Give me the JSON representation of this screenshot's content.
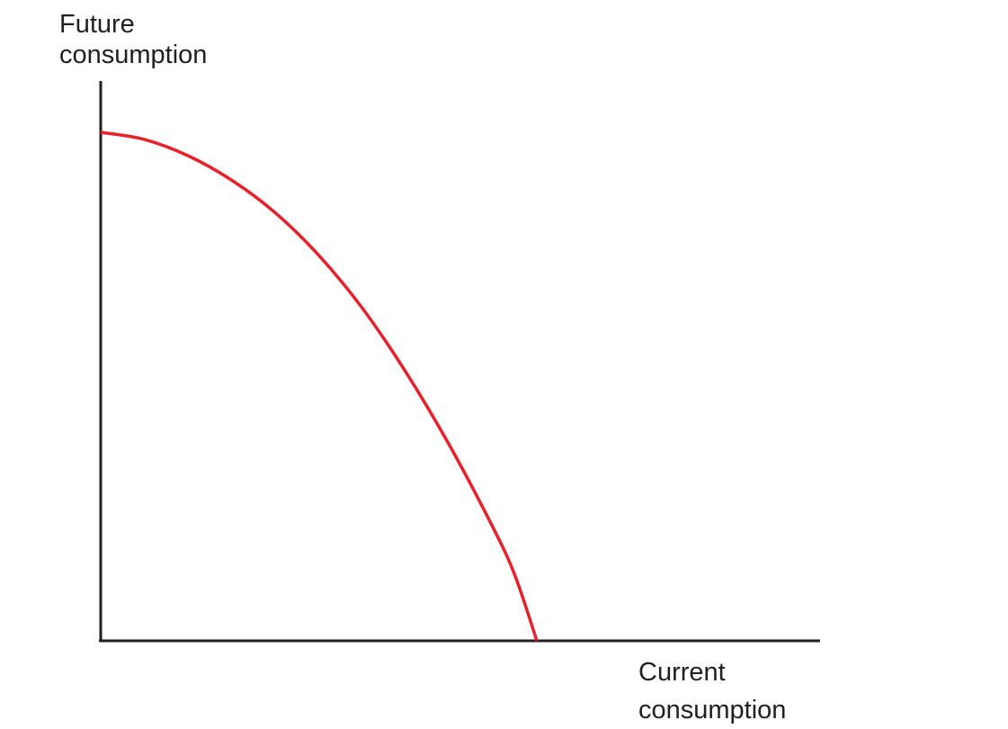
{
  "chart_data": {
    "type": "line",
    "title": "",
    "ylabel_lines": [
      "Future",
      "consumption"
    ],
    "xlabel_lines": [
      "Current",
      "consumption"
    ],
    "xlim": [
      0,
      1
    ],
    "ylim": [
      0,
      1
    ],
    "grid": false,
    "legend": "none",
    "series": [
      {
        "color": "#e8202a",
        "x": [
          0,
          0.1,
          0.2,
          0.3,
          0.4,
          0.5,
          0.6,
          0.7,
          0.8,
          0.9,
          0.95,
          1.0
        ],
        "y": [
          1.0,
          0.986,
          0.954,
          0.906,
          0.842,
          0.758,
          0.654,
          0.528,
          0.384,
          0.222,
          0.128,
          0
        ]
      }
    ]
  },
  "colors": {
    "axis": "#231f20",
    "curve": "#e8202a",
    "text": "#231f20",
    "background": "#ffffff"
  }
}
